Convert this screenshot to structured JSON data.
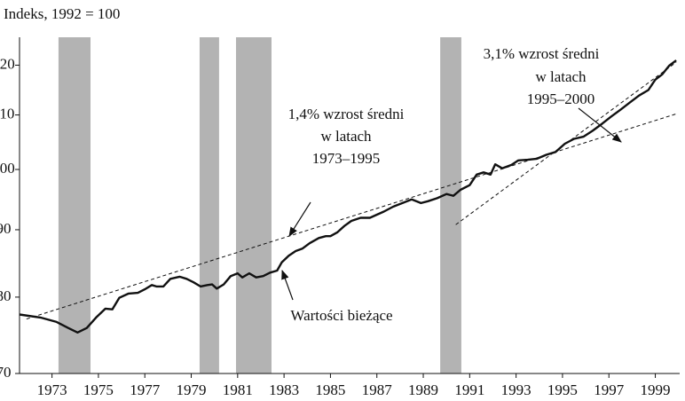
{
  "chart_data": {
    "type": "line",
    "y_label": "Indeks, 1992 = 100",
    "log_scale_y": true,
    "xlim": [
      1971.6,
      2000.05
    ],
    "ylim": [
      70,
      126
    ],
    "xticks": [
      1973,
      1975,
      1977,
      1979,
      1981,
      1983,
      1985,
      1987,
      1989,
      1991,
      1993,
      1995,
      1997,
      1999
    ],
    "yticks": [
      70,
      80,
      90,
      100,
      110,
      120
    ],
    "shaded_periods": [
      [
        1973.28,
        1974.66
      ],
      [
        1979.36,
        1980.2
      ],
      [
        1980.93,
        1982.46
      ],
      [
        1989.73,
        1990.64
      ]
    ],
    "shade_color": "#b3b3b3",
    "series": [
      {
        "name": "Wartości bieżące",
        "color": "#111111",
        "x": [
          1971.6,
          1972.5,
          1973.2,
          1973.7,
          1974.1,
          1974.5,
          1974.9,
          1975.3,
          1975.6,
          1975.9,
          1976.3,
          1976.7,
          1977.0,
          1977.3,
          1977.5,
          1977.8,
          1978.1,
          1978.5,
          1978.8,
          1979.1,
          1979.4,
          1979.7,
          1979.9,
          1980.1,
          1980.4,
          1980.7,
          1981.0,
          1981.2,
          1981.5,
          1981.8,
          1982.1,
          1982.4,
          1982.7,
          1982.9,
          1983.2,
          1983.5,
          1983.8,
          1984.1,
          1984.5,
          1984.8,
          1985.0,
          1985.3,
          1985.6,
          1985.9,
          1986.3,
          1986.7,
          1987.0,
          1987.3,
          1987.7,
          1988.1,
          1988.5,
          1988.9,
          1989.2,
          1989.6,
          1990.0,
          1990.3,
          1990.6,
          1991.0,
          1991.3,
          1991.6,
          1991.9,
          1992.1,
          1992.4,
          1992.8,
          1993.1,
          1993.5,
          1993.9,
          1994.3,
          1994.7,
          1995.1,
          1995.5,
          1995.9,
          1996.3,
          1996.7,
          1997.1,
          1997.5,
          1997.9,
          1998.3,
          1998.7,
          1999.0,
          1999.3,
          1999.6,
          1999.9
        ],
        "values": [
          77.6,
          77.2,
          76.6,
          75.8,
          75.2,
          75.8,
          77.2,
          78.4,
          78.3,
          79.9,
          80.5,
          80.6,
          81.1,
          81.7,
          81.5,
          81.5,
          82.6,
          82.9,
          82.6,
          82.1,
          81.5,
          81.7,
          81.8,
          81.2,
          81.8,
          83.0,
          83.4,
          82.8,
          83.4,
          82.8,
          83.0,
          83.5,
          83.8,
          85.0,
          86.0,
          86.7,
          87.1,
          87.9,
          88.7,
          89.0,
          89.0,
          89.6,
          90.6,
          91.4,
          91.9,
          91.9,
          92.4,
          92.9,
          93.7,
          94.3,
          94.9,
          94.3,
          94.6,
          95.1,
          95.8,
          95.5,
          96.5,
          97.3,
          99.1,
          99.5,
          99.1,
          100.9,
          100.2,
          100.8,
          101.6,
          101.7,
          101.9,
          102.6,
          103.1,
          104.6,
          105.5,
          105.9,
          107.0,
          108.3,
          109.7,
          111.0,
          112.4,
          113.8,
          114.9,
          117.0,
          118.1,
          119.9,
          121.0
        ]
      }
    ],
    "trend_lines": [
      {
        "x": [
          1971.9,
          1999.9
        ],
        "values": [
          77.0,
          110.2
        ]
      },
      {
        "x": [
          1990.4,
          1999.9
        ],
        "values": [
          90.8,
          120.6
        ]
      }
    ],
    "annotations": [
      {
        "lines": [
          "1,4% wzrost średni",
          "w latach",
          "1973–1995"
        ]
      },
      {
        "lines": [
          "3,1% wzrost średni",
          "w latach",
          "1995–2000"
        ]
      },
      {
        "lines": [
          "Wartości bieżące"
        ]
      }
    ]
  }
}
